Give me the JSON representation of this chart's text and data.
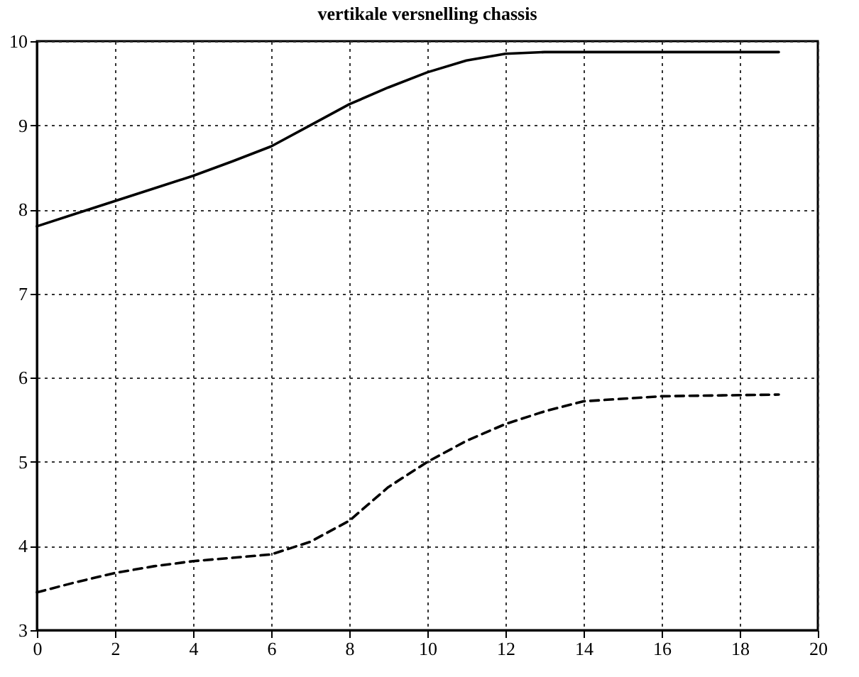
{
  "chart_data": {
    "type": "line",
    "title": "vertikale versnelling chassis",
    "xlim": [
      0,
      20
    ],
    "xticks": [
      0,
      2,
      4,
      6,
      8,
      10,
      12,
      14,
      16,
      18,
      20
    ],
    "ylim": [
      3,
      10
    ],
    "yticks": [
      3,
      4,
      5,
      6,
      7,
      8,
      9,
      10
    ],
    "grid": true,
    "marker": "none",
    "x": [
      0,
      1,
      2,
      3,
      4,
      5,
      6,
      7,
      8,
      9,
      10,
      11,
      12,
      13,
      14,
      16,
      19
    ],
    "series": [
      {
        "color": "#000000",
        "line_style": "solid",
        "values": [
          7.8,
          7.95,
          8.1,
          8.25,
          8.4,
          8.57,
          8.75,
          9.0,
          9.25,
          9.45,
          9.63,
          9.77,
          9.85,
          9.87,
          9.87,
          9.87,
          9.87
        ]
      },
      {
        "color": "#000000",
        "line_style": "dashed",
        "values": [
          3.45,
          3.57,
          3.68,
          3.76,
          3.82,
          3.86,
          3.9,
          4.05,
          4.3,
          4.7,
          5.0,
          5.25,
          5.45,
          5.6,
          5.72,
          5.78,
          5.8
        ]
      }
    ]
  }
}
